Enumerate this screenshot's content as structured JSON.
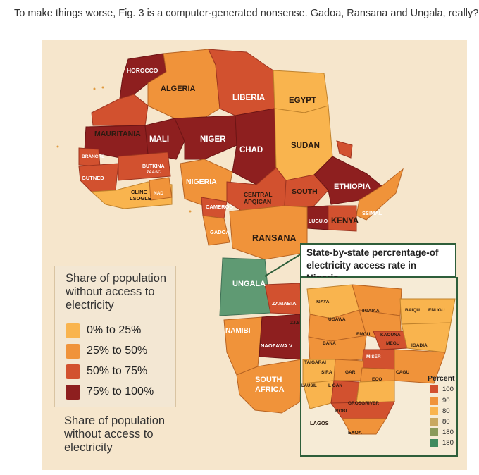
{
  "caption": "To make things worse, Fig. 3 is a computer-generated nonsense. Gadoa, Ransana and Ungala, really?",
  "legend": {
    "title": "Share of population without access to electricity",
    "items": [
      {
        "label": "0% to 25%",
        "color": "#f9b44e"
      },
      {
        "label": "25% to 50%",
        "color": "#f0933a"
      },
      {
        "label": "50% to 75%",
        "color": "#d2512f"
      },
      {
        "label": "75% to 100%",
        "color": "#8e1f1f"
      }
    ],
    "title_repeat": "Share of population without access to electricity"
  },
  "countries": {
    "morocco": "HOROCCO",
    "algeria": "ALGERIA",
    "liberia": "LIBERIA",
    "egypt": "EGYPT",
    "mauritania": "MAURITANIA",
    "mali": "MALI",
    "niger": "NIGER",
    "chad": "CHAD",
    "sudan": "SUDAN",
    "brancre": "BRANCRE",
    "butkina": "BUTKINA",
    "butkina2": "7AASC",
    "gutned": "GUTNED",
    "nigeria": "NIGERIA",
    "ethiopia": "ETHIOPIA",
    "south": "SOUTH",
    "cline": "CLINE",
    "lsogle": "LSOGLE",
    "nad": "NAD",
    "central": "CENTRAL",
    "apqican": "APQICAN",
    "cameroo": "CAMEROO",
    "ssimal": "SSIMAL",
    "lugu": "LUGU.O",
    "kenya": "KENYA",
    "gadoa": "GADOA",
    "ransana": "RANSANA",
    "ungala": "UNGALA",
    "zamabia": "ZAMABIA",
    "zis": "Z.I.S",
    "namibi": "NAMIBI",
    "naozawa": "NAOZAWA V",
    "south_africa_1": "SOUTH",
    "south_africa_2": "AFRICA"
  },
  "inset": {
    "title": "State-by-state percrentage-of electricity access rate in Nigeria",
    "states": {
      "igaya": "IGAYA",
      "ugawa": "UGAWA",
      "iigaiaa": "IIGAIAA",
      "baiqu": "BAIQU",
      "enugu": "ENUGU",
      "bana": "BANA",
      "emgu": "EMGU",
      "kaouna": "KAOUNA",
      "igadia": "IGADIA",
      "megu": "MEGU",
      "miser": "MISER",
      "taigarai": "TAIGARAI",
      "sira": "SIRA",
      "gar": "GAR",
      "cagu": "CAGU",
      "eoo": "EOO",
      "lausil": "LAUSIL",
      "oan": "L OAN",
      "grosgriver": "GROSGRIVER",
      "robi": "ROBI",
      "lagos": "LAGOS",
      "exoa": "EXOA"
    },
    "scale_title": "Percent",
    "scale": [
      {
        "label": "100",
        "color": "#d2512f"
      },
      {
        "label": "90",
        "color": "#f0933a"
      },
      {
        "label": "80",
        "color": "#f9b44e"
      },
      {
        "label": "80",
        "color": "#c9a860"
      },
      {
        "label": "180",
        "color": "#8a9a5a"
      },
      {
        "label": "180",
        "color": "#3f8a5e"
      }
    ]
  }
}
